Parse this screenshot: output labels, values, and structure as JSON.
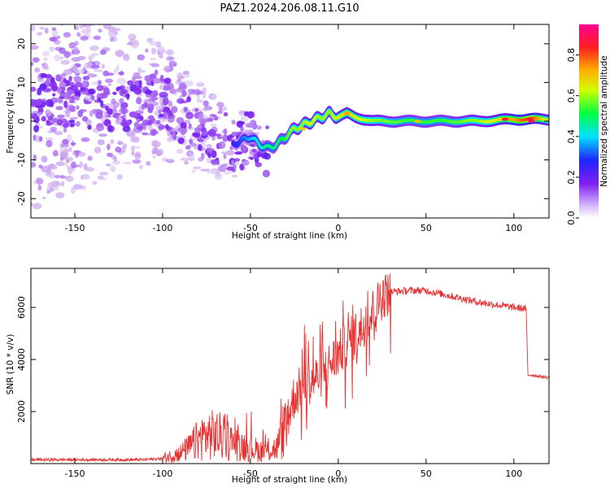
{
  "figure_title": "PAZ1.2024.206.08.11.G10",
  "chart_data": [
    {
      "type": "heatmap",
      "xlabel": "Height of straight line (km)",
      "ylabel": "Frequency (Hz)",
      "xlim": [
        -175,
        120
      ],
      "ylim": [
        -25,
        25
      ],
      "xticks": [
        -150,
        -100,
        -50,
        0,
        50,
        100
      ],
      "yticks": [
        -20,
        -10,
        0,
        10,
        20
      ],
      "colorbar": {
        "label": "Normalized spectral amplitude",
        "range": [
          0,
          0.95
        ],
        "ticks": [
          "0.0",
          "0.2",
          "0.4",
          "0.6",
          "0.8"
        ],
        "tick_values": [
          0.0,
          0.2,
          0.4,
          0.6,
          0.8
        ],
        "colormap": [
          "#f2f2f2",
          "#c8a0f0",
          "#7d1ef0",
          "#1e28ff",
          "#00e0ff",
          "#00ff40",
          "#d0ff00",
          "#ffb000",
          "#ff2020",
          "#ff0090"
        ]
      },
      "ridge": {
        "height_km": [
          -175,
          -150,
          -120,
          -100,
          -85,
          -70,
          -60,
          -50,
          -45,
          -40,
          -35,
          -30,
          -25,
          -20,
          -15,
          -10,
          -5,
          0,
          5,
          10,
          20,
          40,
          60,
          80,
          100,
          110,
          120
        ],
        "frequency_hz": [
          5,
          5,
          5,
          5,
          0,
          -4,
          -6,
          -4,
          -6,
          -7,
          -6,
          -4,
          -2,
          -1,
          0,
          1,
          2,
          1,
          2,
          1,
          0,
          0,
          0,
          0,
          0.5,
          0.5,
          0.5
        ],
        "amplitude": [
          0.15,
          0.2,
          0.2,
          0.25,
          0.25,
          0.25,
          0.3,
          0.4,
          0.45,
          0.5,
          0.5,
          0.55,
          0.6,
          0.6,
          0.65,
          0.6,
          0.6,
          0.65,
          0.7,
          0.65,
          0.6,
          0.55,
          0.55,
          0.6,
          0.75,
          0.85,
          0.6
        ]
      },
      "grid": false
    },
    {
      "type": "line",
      "xlabel": "Height of straight line (km)",
      "ylabel": "SNR (10 * v/v)",
      "xlim": [
        -175,
        120
      ],
      "ylim": [
        0,
        7500
      ],
      "xticks": [
        -150,
        -100,
        -50,
        0,
        50,
        100
      ],
      "yticks": [
        2000,
        4000,
        6000
      ],
      "color": "#e83030",
      "grid": false,
      "series": [
        {
          "x": [
            -175,
            -150,
            -125,
            -110,
            -100,
            -95,
            -90,
            -85,
            -80,
            -75,
            -70,
            -65,
            -60,
            -55,
            -50,
            -45,
            -40,
            -35,
            -30,
            -25,
            -20,
            -15,
            -10,
            -5,
            0,
            5,
            10,
            15,
            20,
            25,
            30,
            40,
            50,
            60,
            70,
            80,
            90,
            100,
            107,
            108,
            110,
            120
          ],
          "y": [
            150,
            150,
            150,
            150,
            200,
            300,
            400,
            600,
            900,
            1100,
            1100,
            1000,
            800,
            700,
            600,
            500,
            500,
            600,
            1500,
            2600,
            3000,
            3200,
            3400,
            3800,
            4200,
            4600,
            5000,
            5400,
            5900,
            6400,
            6600,
            6650,
            6650,
            6500,
            6350,
            6200,
            6100,
            6000,
            5950,
            3400,
            3400,
            3300
          ]
        }
      ]
    }
  ]
}
